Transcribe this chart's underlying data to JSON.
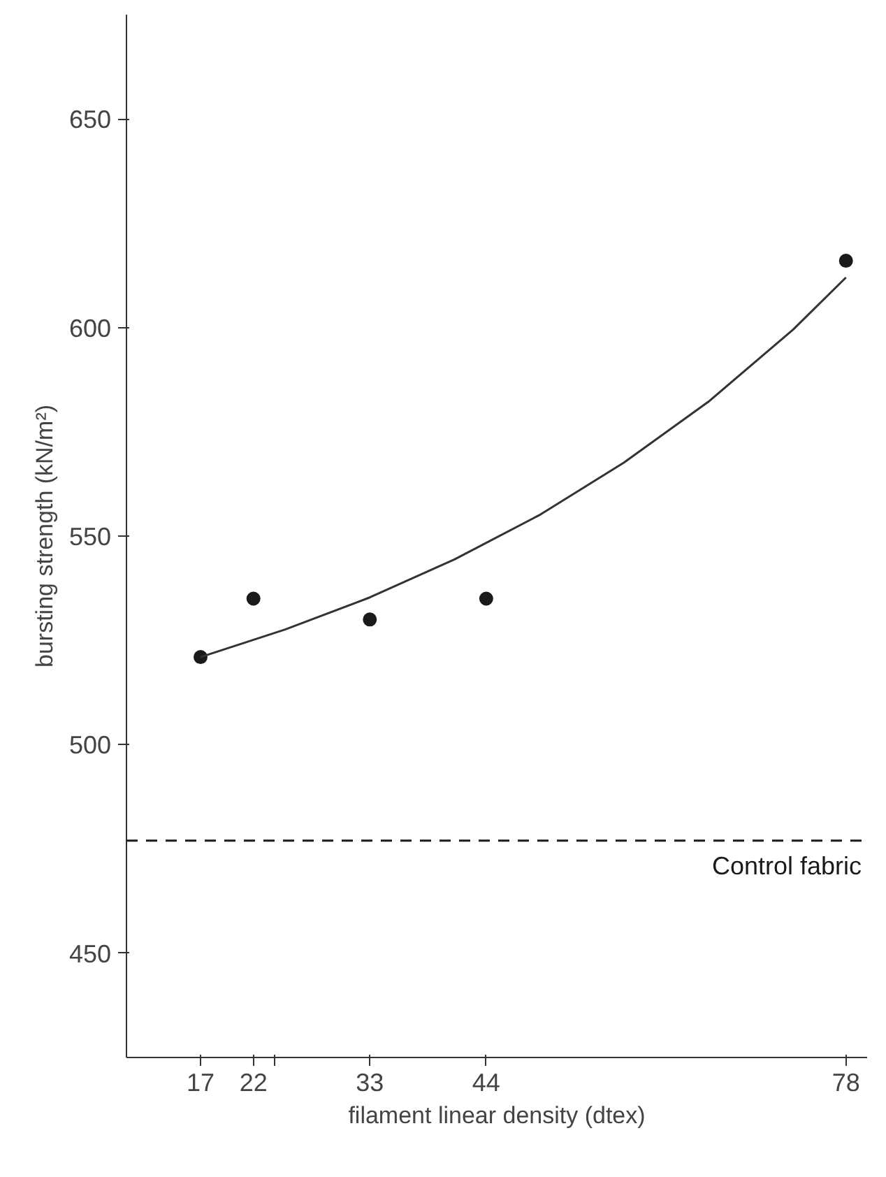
{
  "chart_data": {
    "type": "scatter",
    "xlabel": "filament linear density (dtex)",
    "ylabel": "bursting strength (kN/m²)",
    "xlim": [
      10,
      80
    ],
    "ylim": [
      425,
      675
    ],
    "xticks": [
      17,
      22,
      {
        "value": 24,
        "label": null
      },
      33,
      44,
      78
    ],
    "yticks": [
      450,
      500,
      550,
      600,
      650
    ],
    "grid": false,
    "series": [
      {
        "marker": "circle",
        "color": "#1a1a1a",
        "x": [
          17,
          22,
          33,
          44,
          78
        ],
        "values": [
          521,
          535,
          530,
          535,
          616
        ]
      },
      {
        "type": "line",
        "marker": "none",
        "line_style": "solid",
        "color": "#333333",
        "x": [
          17,
          25,
          33,
          41,
          49,
          57,
          65,
          73,
          78
        ],
        "values": [
          521,
          527.6,
          535.3,
          544.4,
          555,
          567.6,
          582.2,
          599.5,
          612
        ]
      }
    ],
    "ref_lines": [
      {
        "axis": "y",
        "value": 477,
        "label": "Control fabric",
        "line_style": "dashed",
        "color": "#1a1a1a"
      }
    ]
  }
}
